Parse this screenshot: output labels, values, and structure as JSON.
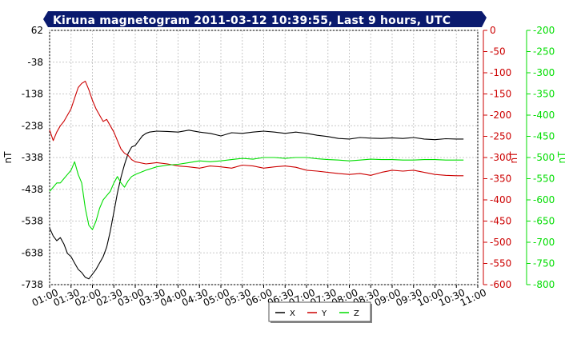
{
  "chart_data": {
    "type": "line",
    "title": "Kiruna magnetogram 2011-03-12 10:39:55, Last 9 hours, UTC",
    "colors": {
      "title_bar": "#0a1a6e",
      "x_series": "#000000",
      "y_series": "#cc0000",
      "z_series": "#00dd00",
      "grid": "#c8c8c8"
    },
    "x_axis": {
      "ticks": [
        "01:00",
        "01:30",
        "02:00",
        "02:30",
        "03:00",
        "03:30",
        "04:00",
        "04:30",
        "05:00",
        "05:30",
        "06:00",
        "06:30",
        "07:00",
        "07:30",
        "08:00",
        "08:30",
        "09:00",
        "09:30",
        "10:00",
        "10:30",
        "11:00"
      ]
    },
    "y_axes": {
      "left": {
        "label": "nT",
        "range": [
          -738,
          62
        ],
        "ticks": [
          62,
          -38,
          -138,
          -238,
          -338,
          -438,
          -538,
          -638,
          -738
        ]
      },
      "right1": {
        "label": "nT",
        "range": [
          -600,
          0
        ],
        "ticks": [
          0,
          -50,
          -100,
          -150,
          -200,
          -250,
          -300,
          -350,
          -400,
          -450,
          -500,
          -550,
          -600
        ]
      },
      "right2": {
        "label": "nT",
        "range": [
          -800,
          -200
        ],
        "ticks": [
          -200,
          -250,
          -300,
          -350,
          -400,
          -450,
          -500,
          -550,
          -600,
          -650,
          -700,
          -750,
          -800
        ]
      }
    },
    "grid": true,
    "legend_position": "bottom-center",
    "series": [
      {
        "name": "X",
        "axis": "left",
        "points": [
          [
            "01:00",
            -560
          ],
          [
            "01:05",
            -585
          ],
          [
            "01:10",
            -600
          ],
          [
            "01:15",
            -590
          ],
          [
            "01:20",
            -610
          ],
          [
            "01:25",
            -640
          ],
          [
            "01:30",
            -650
          ],
          [
            "01:35",
            -670
          ],
          [
            "01:40",
            -690
          ],
          [
            "01:45",
            -700
          ],
          [
            "01:50",
            -715
          ],
          [
            "01:55",
            -720
          ],
          [
            "02:00",
            -705
          ],
          [
            "02:05",
            -690
          ],
          [
            "02:10",
            -670
          ],
          [
            "02:15",
            -650
          ],
          [
            "02:20",
            -620
          ],
          [
            "02:25",
            -570
          ],
          [
            "02:30",
            -510
          ],
          [
            "02:35",
            -450
          ],
          [
            "02:40",
            -400
          ],
          [
            "02:45",
            -360
          ],
          [
            "02:50",
            -325
          ],
          [
            "02:55",
            -305
          ],
          [
            "03:00",
            -300
          ],
          [
            "03:05",
            -285
          ],
          [
            "03:10",
            -270
          ],
          [
            "03:15",
            -262
          ],
          [
            "03:20",
            -258
          ],
          [
            "03:30",
            -255
          ],
          [
            "03:45",
            -256
          ],
          [
            "04:00",
            -258
          ],
          [
            "04:15",
            -252
          ],
          [
            "04:30",
            -258
          ],
          [
            "04:45",
            -262
          ],
          [
            "05:00",
            -270
          ],
          [
            "05:15",
            -260
          ],
          [
            "05:30",
            -262
          ],
          [
            "05:45",
            -258
          ],
          [
            "06:00",
            -255
          ],
          [
            "06:15",
            -258
          ],
          [
            "06:30",
            -262
          ],
          [
            "06:45",
            -258
          ],
          [
            "07:00",
            -262
          ],
          [
            "07:15",
            -268
          ],
          [
            "07:30",
            -272
          ],
          [
            "07:45",
            -278
          ],
          [
            "08:00",
            -280
          ],
          [
            "08:15",
            -275
          ],
          [
            "08:30",
            -277
          ],
          [
            "08:45",
            -278
          ],
          [
            "09:00",
            -276
          ],
          [
            "09:15",
            -278
          ],
          [
            "09:30",
            -275
          ],
          [
            "09:45",
            -280
          ],
          [
            "10:00",
            -282
          ],
          [
            "10:15",
            -279
          ],
          [
            "10:30",
            -280
          ],
          [
            "10:40",
            -280
          ]
        ]
      },
      {
        "name": "Y",
        "axis": "right1",
        "points": [
          [
            "01:00",
            -235
          ],
          [
            "01:05",
            -260
          ],
          [
            "01:10",
            -240
          ],
          [
            "01:15",
            -225
          ],
          [
            "01:20",
            -215
          ],
          [
            "01:25",
            -200
          ],
          [
            "01:30",
            -185
          ],
          [
            "01:35",
            -160
          ],
          [
            "01:40",
            -135
          ],
          [
            "01:45",
            -125
          ],
          [
            "01:50",
            -120
          ],
          [
            "01:55",
            -140
          ],
          [
            "02:00",
            -165
          ],
          [
            "02:05",
            -185
          ],
          [
            "02:10",
            -200
          ],
          [
            "02:15",
            -215
          ],
          [
            "02:20",
            -210
          ],
          [
            "02:25",
            -225
          ],
          [
            "02:30",
            -240
          ],
          [
            "02:35",
            -260
          ],
          [
            "02:40",
            -280
          ],
          [
            "02:45",
            -290
          ],
          [
            "02:50",
            -295
          ],
          [
            "02:55",
            -305
          ],
          [
            "03:00",
            -310
          ],
          [
            "03:15",
            -315
          ],
          [
            "03:30",
            -312
          ],
          [
            "03:45",
            -315
          ],
          [
            "04:00",
            -320
          ],
          [
            "04:15",
            -322
          ],
          [
            "04:30",
            -325
          ],
          [
            "04:45",
            -320
          ],
          [
            "05:00",
            -322
          ],
          [
            "05:15",
            -325
          ],
          [
            "05:30",
            -318
          ],
          [
            "05:45",
            -320
          ],
          [
            "06:00",
            -325
          ],
          [
            "06:15",
            -322
          ],
          [
            "06:30",
            -320
          ],
          [
            "06:45",
            -323
          ],
          [
            "07:00",
            -330
          ],
          [
            "07:15",
            -332
          ],
          [
            "07:30",
            -335
          ],
          [
            "07:45",
            -338
          ],
          [
            "08:00",
            -340
          ],
          [
            "08:15",
            -338
          ],
          [
            "08:30",
            -342
          ],
          [
            "08:45",
            -335
          ],
          [
            "09:00",
            -330
          ],
          [
            "09:15",
            -332
          ],
          [
            "09:30",
            -330
          ],
          [
            "09:45",
            -335
          ],
          [
            "10:00",
            -340
          ],
          [
            "10:15",
            -342
          ],
          [
            "10:30",
            -343
          ],
          [
            "10:40",
            -343
          ]
        ]
      },
      {
        "name": "Z",
        "axis": "right2",
        "points": [
          [
            "01:00",
            -580
          ],
          [
            "01:05",
            -570
          ],
          [
            "01:10",
            -560
          ],
          [
            "01:15",
            -560
          ],
          [
            "01:20",
            -550
          ],
          [
            "01:25",
            -540
          ],
          [
            "01:30",
            -530
          ],
          [
            "01:35",
            -510
          ],
          [
            "01:40",
            -540
          ],
          [
            "01:45",
            -560
          ],
          [
            "01:50",
            -620
          ],
          [
            "01:55",
            -660
          ],
          [
            "02:00",
            -670
          ],
          [
            "02:05",
            -650
          ],
          [
            "02:10",
            -620
          ],
          [
            "02:15",
            -600
          ],
          [
            "02:20",
            -590
          ],
          [
            "02:25",
            -580
          ],
          [
            "02:30",
            -560
          ],
          [
            "02:35",
            -545
          ],
          [
            "02:40",
            -560
          ],
          [
            "02:45",
            -570
          ],
          [
            "02:50",
            -555
          ],
          [
            "02:55",
            -545
          ],
          [
            "03:00",
            -540
          ],
          [
            "03:15",
            -530
          ],
          [
            "03:30",
            -522
          ],
          [
            "03:45",
            -518
          ],
          [
            "04:00",
            -516
          ],
          [
            "04:15",
            -512
          ],
          [
            "04:30",
            -508
          ],
          [
            "04:45",
            -510
          ],
          [
            "05:00",
            -508
          ],
          [
            "05:15",
            -505
          ],
          [
            "05:30",
            -502
          ],
          [
            "05:45",
            -504
          ],
          [
            "06:00",
            -500
          ],
          [
            "06:15",
            -500
          ],
          [
            "06:30",
            -502
          ],
          [
            "06:45",
            -500
          ],
          [
            "07:00",
            -500
          ],
          [
            "07:15",
            -503
          ],
          [
            "07:30",
            -505
          ],
          [
            "07:45",
            -506
          ],
          [
            "08:00",
            -508
          ],
          [
            "08:15",
            -506
          ],
          [
            "08:30",
            -504
          ],
          [
            "08:45",
            -505
          ],
          [
            "09:00",
            -505
          ],
          [
            "09:15",
            -506
          ],
          [
            "09:30",
            -506
          ],
          [
            "09:45",
            -505
          ],
          [
            "10:00",
            -505
          ],
          [
            "10:15",
            -506
          ],
          [
            "10:30",
            -506
          ],
          [
            "10:40",
            -506
          ]
        ]
      }
    ],
    "legend": [
      {
        "label": "X",
        "color": "#000000"
      },
      {
        "label": "Y",
        "color": "#cc0000"
      },
      {
        "label": "Z",
        "color": "#00dd00"
      }
    ]
  }
}
